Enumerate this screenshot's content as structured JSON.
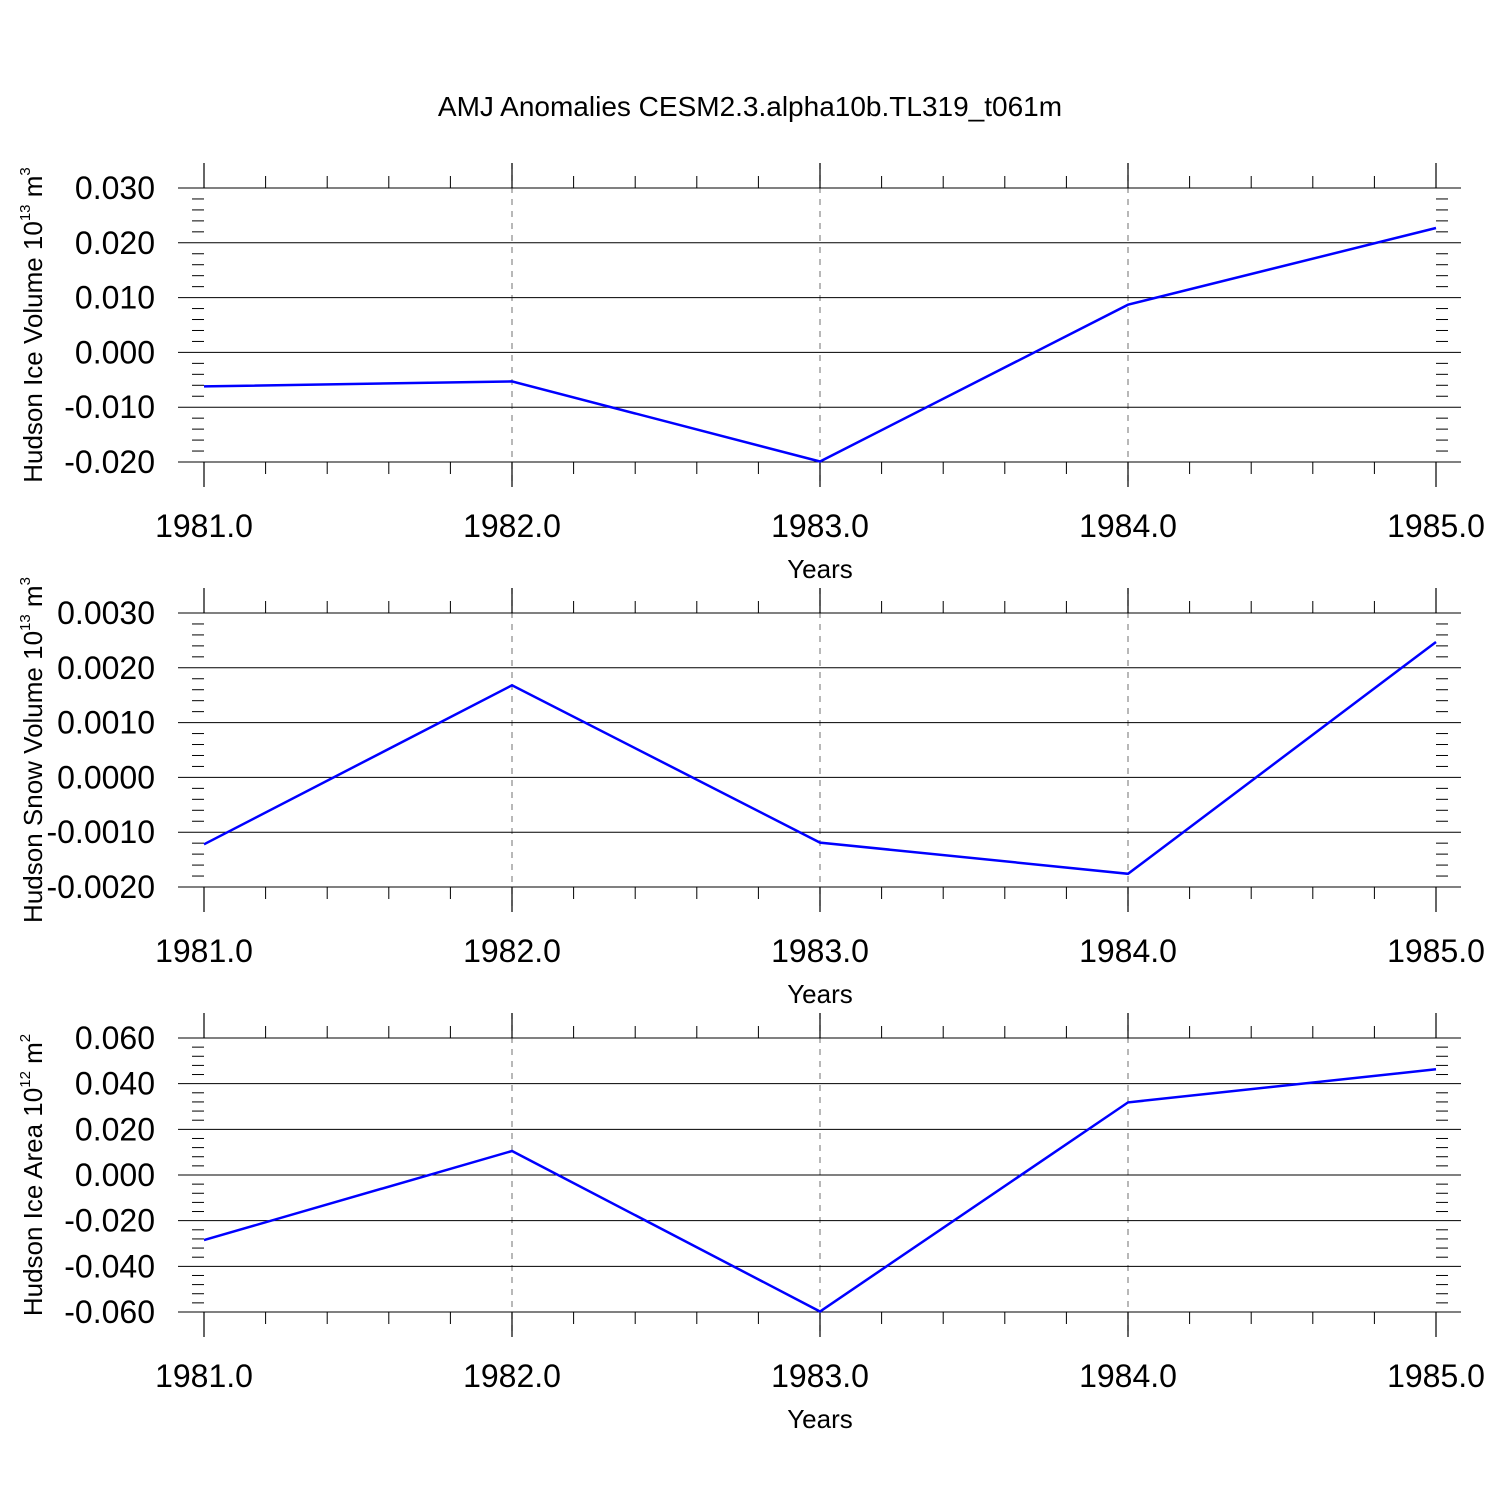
{
  "title": "AMJ Anomalies CESM2.3.alpha10b.TL319_t061m",
  "line_color": "#0000ff",
  "chart_data": [
    {
      "type": "line",
      "ylabel": {
        "text": "Hudson Ice Volume 10",
        "exp": "13",
        "unit": " m",
        "unit_exp": "3"
      },
      "xlabel": "Years",
      "xlim": [
        1981,
        1985
      ],
      "ylim": [
        -0.02,
        0.03
      ],
      "xticks": [
        "1981.0",
        "1982.0",
        "1983.0",
        "1984.0",
        "1985.0"
      ],
      "yticks": [
        "0.030",
        "0.020",
        "0.010",
        "0.000",
        "-0.010",
        "-0.020"
      ],
      "x": [
        1981,
        1982,
        1983,
        1984,
        1985
      ],
      "values": [
        -0.0062,
        -0.0053,
        -0.0199,
        0.0087,
        0.0227
      ],
      "grid": "vertical dashed at year ticks"
    },
    {
      "type": "line",
      "ylabel": {
        "text": "Hudson Snow Volume 10",
        "exp": "13",
        "unit": " m",
        "unit_exp": "3"
      },
      "xlabel": "Years",
      "xlim": [
        1981,
        1985
      ],
      "ylim": [
        -0.002,
        0.003
      ],
      "xticks": [
        "1981.0",
        "1982.0",
        "1983.0",
        "1984.0",
        "1985.0"
      ],
      "yticks": [
        "0.0030",
        "0.0020",
        "0.0010",
        "0.0000",
        "-0.0010",
        "-0.0020"
      ],
      "x": [
        1981,
        1982,
        1983,
        1984,
        1985
      ],
      "values": [
        -0.00122,
        0.00168,
        -0.00119,
        -0.00176,
        0.00247
      ],
      "grid": "vertical dashed at year ticks"
    },
    {
      "type": "line",
      "ylabel": {
        "text": "Hudson Ice Area 10",
        "exp": "12",
        "unit": " m",
        "unit_exp": "2"
      },
      "xlabel": "Years",
      "xlim": [
        1981,
        1985
      ],
      "ylim": [
        -0.06,
        0.06
      ],
      "xticks": [
        "1981.0",
        "1982.0",
        "1983.0",
        "1984.0",
        "1985.0"
      ],
      "yticks": [
        "0.060",
        "0.040",
        "0.020",
        "0.000",
        "-0.020",
        "-0.040",
        "-0.060"
      ],
      "x": [
        1981,
        1982,
        1983,
        1984,
        1985
      ],
      "values": [
        -0.0285,
        0.0105,
        -0.0598,
        0.0318,
        0.0463
      ],
      "grid": "vertical dashed at year ticks"
    }
  ]
}
